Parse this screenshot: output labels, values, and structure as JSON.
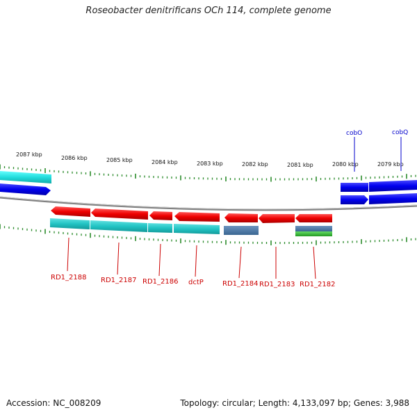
{
  "title": "Roseobacter denitrificans OCh 114, complete genome",
  "footer": {
    "accession": "Accession: NC_008209",
    "summary": "Topology: circular; Length: 4,133,097 bp; Genes: 3,988"
  },
  "scale_labels": [
    "2087 kbp",
    "2086 kbp",
    "2085 kbp",
    "2084 kbp",
    "2083 kbp",
    "2082 kbp",
    "2081 kbp",
    "2080 kbp",
    "2079 kbp"
  ],
  "genes_top": [
    "cobO",
    "cobQ"
  ],
  "genes_bottom": [
    "RD1_2188",
    "RD1_2187",
    "RD1_2186",
    "dctP",
    "RD1_2184",
    "RD1_2183",
    "RD1_2182"
  ],
  "colors": {
    "forward_gene": "#0000ee",
    "reverse_gene": "#ee0000",
    "forward_cds": "#00cccc",
    "reverse_cds": "#2bbdbd",
    "rna_feature": "#3f6e9e",
    "green_feature": "#33bb33",
    "tick": "#2a8a2a",
    "backbone": "#808080",
    "top_label": "#0000cc",
    "bottom_label": "#cc0000"
  }
}
